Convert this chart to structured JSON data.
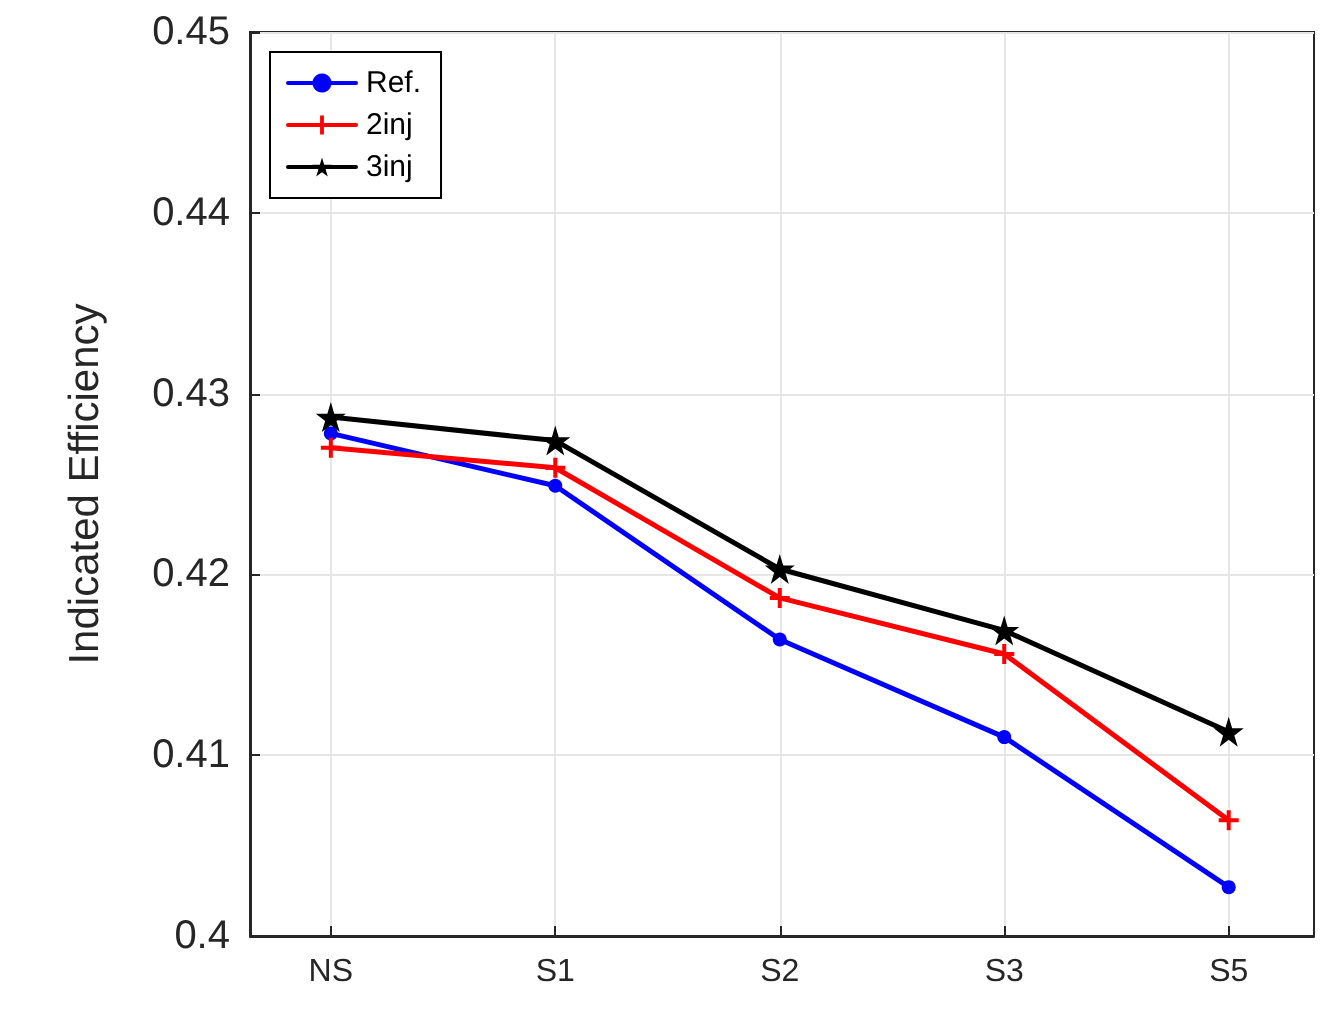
{
  "chart_data": {
    "type": "line",
    "ylabel": "Indicated Efficiency",
    "categories": [
      "NS",
      "S1",
      "S2",
      "S3",
      "S5"
    ],
    "series": [
      {
        "name": "Ref.",
        "color": "#0000ff",
        "marker": "circle",
        "values": [
          0.4278,
          0.4249,
          0.4164,
          0.411,
          0.4027
        ]
      },
      {
        "name": "2inj",
        "color": "#ff0000",
        "marker": "cross",
        "values": [
          0.427,
          0.4259,
          0.4187,
          0.4156,
          0.4064
        ]
      },
      {
        "name": "3inj",
        "color": "#000000",
        "marker": "star",
        "values": [
          0.4287,
          0.4274,
          0.4203,
          0.4169,
          0.4113
        ]
      }
    ],
    "ylim": [
      0.4,
      0.45
    ],
    "yticks": [
      0.4,
      0.41,
      0.42,
      0.43,
      0.44,
      0.45
    ],
    "grid": true,
    "legend": "top left",
    "line_style": "solid"
  }
}
